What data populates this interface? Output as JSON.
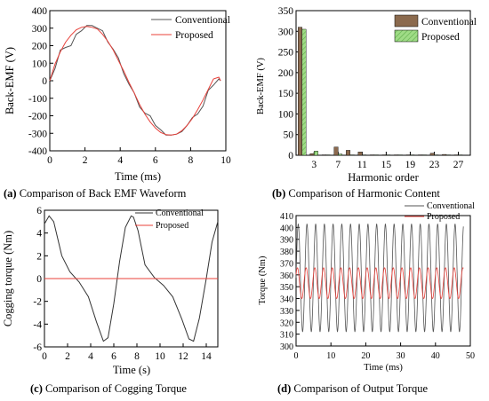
{
  "charts": [
    {
      "id": "a",
      "chart_data": {
        "type": "line",
        "xlabel": "Time (ms)",
        "ylabel": "Back-EMF (V)",
        "xlim": [
          0,
          10
        ],
        "ylim": [
          -400,
          400
        ],
        "xticks": [
          0,
          2,
          4,
          6,
          8,
          10
        ],
        "yticks": [
          -400,
          -300,
          -200,
          -100,
          0,
          100,
          200,
          300,
          400
        ],
        "legend": "top-right",
        "series": [
          {
            "name": "Conventional",
            "color": "#555555",
            "x": [
              0,
              0.3,
              0.6,
              0.9,
              1.2,
              1.5,
              1.8,
              2.1,
              2.4,
              2.7,
              3.0,
              3.3,
              3.6,
              3.9,
              4.2,
              4.5,
              4.8,
              5.1,
              5.4,
              5.7,
              6.0,
              6.3,
              6.6,
              6.9,
              7.2,
              7.5,
              7.8,
              8.1,
              8.4,
              8.7,
              9.0,
              9.3,
              9.6,
              9.7
            ],
            "y": [
              0,
              70,
              175,
              190,
              200,
              265,
              285,
              315,
              315,
              300,
              285,
              220,
              180,
              130,
              40,
              -20,
              -70,
              -150,
              -185,
              -200,
              -255,
              -280,
              -310,
              -310,
              -305,
              -290,
              -255,
              -210,
              -190,
              -145,
              -55,
              -25,
              10,
              0
            ]
          },
          {
            "name": "Proposed",
            "color": "#e8403a",
            "x": [
              0,
              0.3,
              0.6,
              0.9,
              1.2,
              1.5,
              1.8,
              2.1,
              2.4,
              2.7,
              3.0,
              3.3,
              3.6,
              3.9,
              4.2,
              4.5,
              4.8,
              5.1,
              5.4,
              5.7,
              6.0,
              6.3,
              6.6,
              6.9,
              7.2,
              7.5,
              7.8,
              8.1,
              8.4,
              8.7,
              9.0,
              9.3,
              9.6,
              9.7
            ],
            "y": [
              0,
              95,
              165,
              220,
              260,
              290,
              305,
              310,
              305,
              295,
              265,
              225,
              175,
              115,
              55,
              -10,
              -70,
              -135,
              -190,
              -235,
              -270,
              -295,
              -308,
              -310,
              -305,
              -285,
              -255,
              -215,
              -165,
              -110,
              -50,
              10,
              20,
              0
            ]
          }
        ]
      },
      "caption_letter": "(a)",
      "caption_text": " Comparison of Back EMF Waveform"
    },
    {
      "id": "b",
      "chart_data": {
        "type": "bar",
        "xlabel": "Harmonic order",
        "ylabel": "Back-EMF (V)",
        "ylim": [
          0,
          350
        ],
        "xlim": [
          0,
          29
        ],
        "xticks": [
          3,
          7,
          11,
          15,
          19,
          23,
          27
        ],
        "yticks": [
          0,
          50,
          100,
          150,
          200,
          250,
          300,
          350
        ],
        "legend": "top-right",
        "categories": [
          1,
          3,
          5,
          7,
          9,
          11,
          13,
          15,
          17,
          19,
          21,
          23,
          25,
          27
        ],
        "series": [
          {
            "name": "Conventional",
            "color": "#8b6a4e",
            "values": [
              310,
              4,
              1,
              20,
              12,
              8,
              1,
              1,
              1,
              1,
              1,
              5,
              2,
              1
            ]
          },
          {
            "name": "Proposed",
            "color": "#8fd27a",
            "values": [
              305,
              10,
              1,
              3,
              1,
              1,
              1,
              1,
              1,
              1,
              1,
              1,
              1,
              1
            ]
          }
        ]
      },
      "caption_letter": "(b)",
      "caption_text": " Comparison of Harmonic Content"
    },
    {
      "id": "c",
      "chart_data": {
        "type": "line",
        "xlabel": "Time (s)",
        "ylabel": "Cogging torque (Nm)",
        "xlim": [
          0,
          15
        ],
        "ylim": [
          -6,
          6
        ],
        "xticks": [
          0,
          2,
          4,
          6,
          8,
          10,
          12,
          14
        ],
        "yticks": [
          -6,
          -4,
          -2,
          0,
          2,
          4,
          6
        ],
        "legend": "top-right",
        "series": [
          {
            "name": "Conventional",
            "color": "#333333",
            "x": [
              0,
              0.4,
              0.8,
              1.5,
              2.2,
              3.0,
              3.8,
              4.5,
              5.1,
              5.5,
              6.0,
              6.5,
              7.0,
              7.5,
              7.7,
              8.1,
              8.7,
              9.5,
              10.3,
              11.1,
              11.9,
              12.5,
              12.9,
              13.4,
              14.0,
              14.5,
              15.0
            ],
            "y": [
              4.8,
              5.5,
              5.0,
              2.0,
              0.6,
              -0.3,
              -1.6,
              -3.8,
              -5.5,
              -5.2,
              -2.2,
              1.5,
              4.5,
              5.5,
              5.4,
              4.2,
              1.2,
              0.1,
              -0.6,
              -1.6,
              -3.6,
              -5.3,
              -5.5,
              -3.5,
              0.0,
              3.2,
              5.0
            ]
          },
          {
            "name": "Proposed",
            "color": "#e8403a",
            "x": [
              0,
              15
            ],
            "y": [
              0,
              0
            ]
          }
        ]
      },
      "caption_letter": "(c)",
      "caption_text": " Comparison of Cogging Torque"
    },
    {
      "id": "d",
      "chart_data": {
        "type": "line",
        "xlabel": "Time (ms)",
        "ylabel": "Torque (Nm)",
        "xlim": [
          0,
          50
        ],
        "ylim": [
          300,
          410
        ],
        "xticks": [
          0,
          10,
          20,
          30,
          40,
          50
        ],
        "yticks": [
          300,
          310,
          320,
          330,
          340,
          350,
          360,
          370,
          380,
          390,
          400,
          410
        ],
        "legend": "top-right",
        "series": [
          {
            "name": "Conventional",
            "color": "#555555",
            "period_ms": 2.5,
            "min": 312,
            "max": 403
          },
          {
            "name": "Proposed",
            "color": "#e8403a",
            "period_ms": 2.5,
            "min": 340,
            "max": 366
          }
        ]
      },
      "caption_letter": "(d)",
      "caption_text": " Comparison of Output Torque"
    }
  ]
}
